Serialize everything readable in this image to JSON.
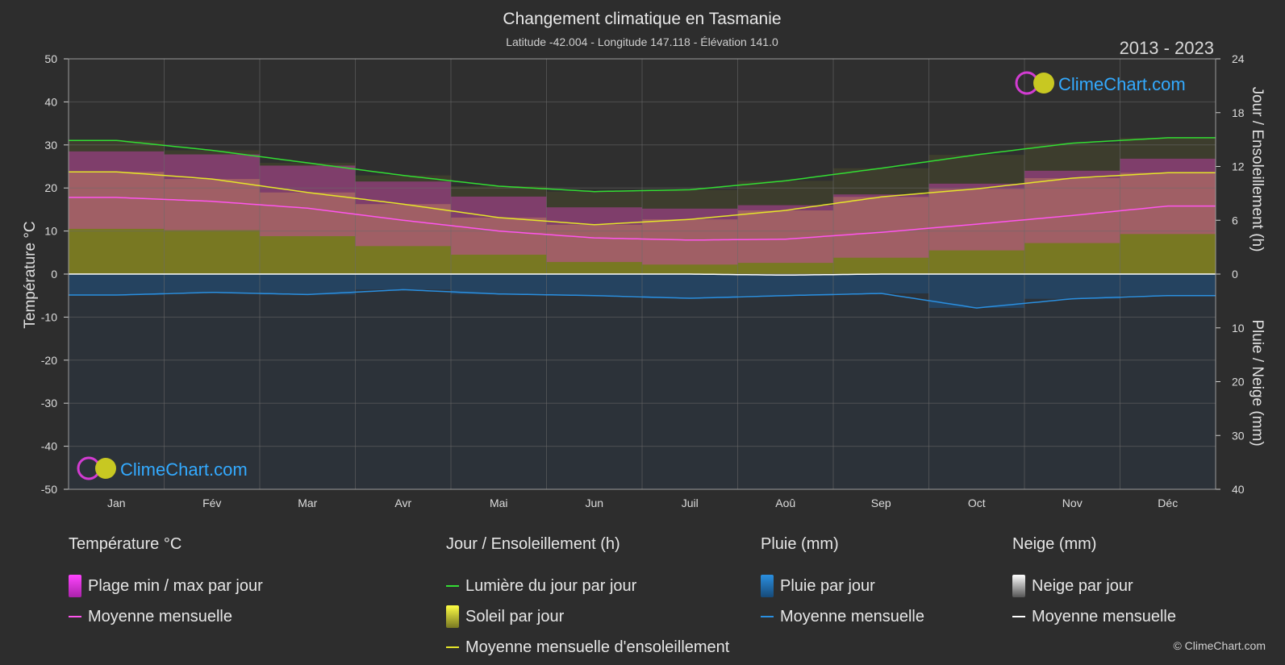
{
  "title": "Changement climatique en Tasmanie",
  "subtitle": "Latitude -42.004 - Longitude 147.118 - Élévation 141.0",
  "year_range": "2013 - 2023",
  "watermark": "ClimeChart.com",
  "copyright": "© ClimeChart.com",
  "chart_data": {
    "type": "line",
    "categories": [
      "Jan",
      "Fév",
      "Mar",
      "Avr",
      "Mai",
      "Jun",
      "Juil",
      "Aoû",
      "Sep",
      "Oct",
      "Nov",
      "Déc"
    ],
    "ylabel_left": "Température °C",
    "ylabel_right_top": "Jour / Ensoleillement (h)",
    "ylabel_right_bottom": "Pluie / Neige (mm)",
    "ylim_temperature": [
      -50,
      50
    ],
    "ylim_sun_hours": [
      0,
      24
    ],
    "ylim_precip_mm": [
      0,
      40
    ],
    "yticks_left": [
      "50",
      "40",
      "30",
      "20",
      "10",
      "0",
      "-10",
      "-20",
      "-30",
      "-40",
      "-50"
    ],
    "yticks_right_top": [
      "24",
      "18",
      "12",
      "6",
      "0"
    ],
    "yticks_right_bottom": [
      "10",
      "20",
      "30",
      "40"
    ],
    "grid": true,
    "series": [
      {
        "name": "Lumière du jour par jour",
        "unit": "h",
        "color": "#33dd33",
        "values": [
          14.9,
          13.8,
          12.4,
          11.0,
          9.8,
          9.2,
          9.4,
          10.4,
          11.8,
          13.3,
          14.6,
          15.2
        ]
      },
      {
        "name": "Moyenne mensuelle d'ensoleillement",
        "unit": "h",
        "color": "#e5e52a",
        "values": [
          11.4,
          10.6,
          9.1,
          7.8,
          6.3,
          5.5,
          6.1,
          7.1,
          8.6,
          9.5,
          10.7,
          11.3
        ]
      },
      {
        "name": "Moyenne mensuelle",
        "unit": "°C",
        "color": "#ff55ee",
        "values": [
          17.8,
          16.9,
          15.3,
          12.5,
          10.0,
          8.4,
          7.9,
          8.1,
          9.7,
          11.6,
          13.6,
          15.8
        ]
      },
      {
        "name": "Plage min / max par jour (max)",
        "unit": "°C",
        "values": [
          28.5,
          27.8,
          25.2,
          21.5,
          18.0,
          15.5,
          15.2,
          16.0,
          18.5,
          21.0,
          24.0,
          26.8
        ]
      },
      {
        "name": "Plage min / max par jour (min)",
        "unit": "°C",
        "values": [
          10.5,
          10.2,
          8.8,
          6.5,
          4.5,
          2.8,
          2.2,
          2.6,
          3.8,
          5.5,
          7.2,
          9.3
        ]
      },
      {
        "name": "Pluie moyenne mensuelle",
        "unit": "mm",
        "color": "#2a8fe0",
        "values": [
          3.9,
          3.4,
          3.8,
          2.9,
          3.7,
          4.0,
          4.5,
          4.0,
          3.6,
          6.3,
          4.6,
          4.0
        ]
      },
      {
        "name": "Neige moyenne mensuelle",
        "unit": "mm",
        "color": "#ffffff",
        "values": [
          0,
          0,
          0,
          0,
          0,
          0,
          0,
          0.2,
          0,
          0,
          0,
          0
        ]
      }
    ]
  },
  "legend": {
    "temperature": {
      "title": "Température °C",
      "items": [
        {
          "label": "Plage min / max par jour",
          "color": "#e040d0"
        },
        {
          "label": "Moyenne mensuelle",
          "color": "#ff55ee"
        }
      ]
    },
    "sun": {
      "title": "Jour / Ensoleillement (h)",
      "items": [
        {
          "label": "Lumière du jour par jour",
          "color": "#33dd33"
        },
        {
          "label": "Soleil par jour",
          "color": "#cccc33"
        },
        {
          "label": "Moyenne mensuelle d'ensoleillement",
          "color": "#e5e52a"
        }
      ]
    },
    "rain": {
      "title": "Pluie (mm)",
      "items": [
        {
          "label": "Pluie par jour",
          "color": "#2a8fe0"
        },
        {
          "label": "Moyenne mensuelle",
          "color": "#2a8fe0"
        }
      ]
    },
    "snow": {
      "title": "Neige (mm)",
      "items": [
        {
          "label": "Neige par jour",
          "color": "#dddddd"
        },
        {
          "label": "Moyenne mensuelle",
          "color": "#ffffff"
        }
      ]
    }
  }
}
